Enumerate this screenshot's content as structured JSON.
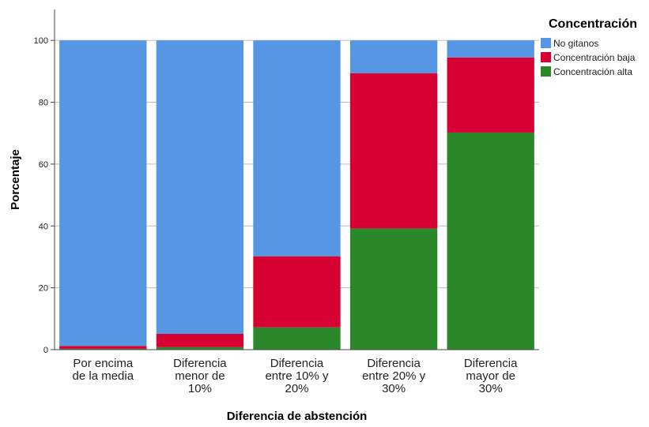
{
  "chart_data": {
    "type": "bar",
    "stacked": true,
    "categories": [
      [
        "Por encima",
        "de la media"
      ],
      [
        "Diferencia",
        "menor de",
        "10%"
      ],
      [
        "Diferencia",
        "entre 10% y",
        "20%"
      ],
      [
        "Diferencia",
        "entre 20% y",
        "30%"
      ],
      [
        "Diferencia",
        "mayor de",
        "30%"
      ]
    ],
    "series": [
      {
        "name": "Concentración alta",
        "color": "#2a872a",
        "values": [
          0.3,
          0.8,
          7.2,
          39.2,
          70.2
        ]
      },
      {
        "name": "Concentración baja",
        "color": "#d60032",
        "values": [
          0.9,
          4.3,
          23.0,
          50.2,
          24.3
        ]
      },
      {
        "name": "No gitanos",
        "color": "#5597e3",
        "values": [
          98.8,
          94.9,
          69.8,
          10.6,
          5.5
        ]
      }
    ],
    "xlabel": "Diferencia de abstención",
    "ylabel": "Porcentaje",
    "ylim": [
      0,
      110
    ],
    "yticks": [
      0,
      20,
      40,
      60,
      80,
      100
    ],
    "grid": true,
    "legend": {
      "title": "Concentración",
      "position": "top-right",
      "items": [
        "No gitanos",
        "Concentración baja",
        "Concentración alta"
      ]
    }
  }
}
